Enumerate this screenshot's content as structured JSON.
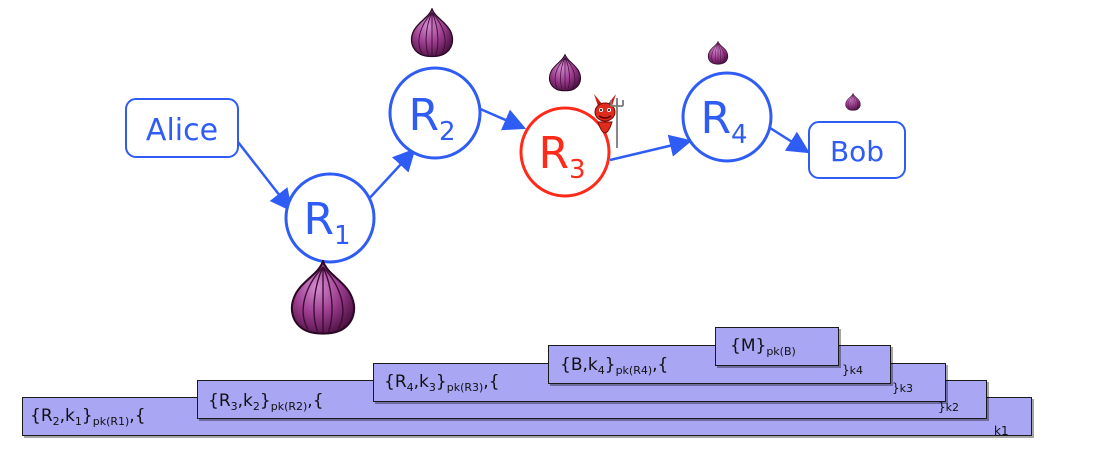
{
  "diagram": {
    "nodes": {
      "alice": "Alice",
      "bob": "Bob",
      "r1": {
        "main": "R",
        "sub": "1"
      },
      "r2": {
        "main": "R",
        "sub": "2"
      },
      "r3": {
        "main": "R",
        "sub": "3"
      },
      "r4": {
        "main": "R",
        "sub": "4"
      }
    },
    "colors": {
      "node_blue": "#2f5cf5",
      "compromised_red": "#ff2a1a",
      "layer_fill": "#a9a6f4",
      "onion_purple": "#9b3c8d"
    },
    "icons": [
      "onion-icon",
      "devil-icon"
    ]
  },
  "layers": {
    "l1": {
      "lead": "{R",
      "s1": "2",
      "mid": ",k",
      "s2": "1",
      "close": "}",
      "pk": "pk(R1)",
      "tail": ",{",
      "k": "k1"
    },
    "l2": {
      "lead": "{R",
      "s1": "3",
      "mid": ",k",
      "s2": "2",
      "close": "}",
      "pk": "pk(R2)",
      "tail": ",{",
      "k": "k2"
    },
    "l3": {
      "lead": "{R",
      "s1": "4",
      "mid": ",k",
      "s2": "3",
      "close": "}",
      "pk": "pk(R3)",
      "tail": ",{",
      "k": "k3"
    },
    "l4": {
      "lead": "{B,k",
      "s1": "4",
      "close": "}",
      "pk": "pk(R4)",
      "tail": ",{",
      "k": "k4"
    },
    "l5": {
      "lead": "{M}",
      "pk": "pk(B)"
    }
  }
}
